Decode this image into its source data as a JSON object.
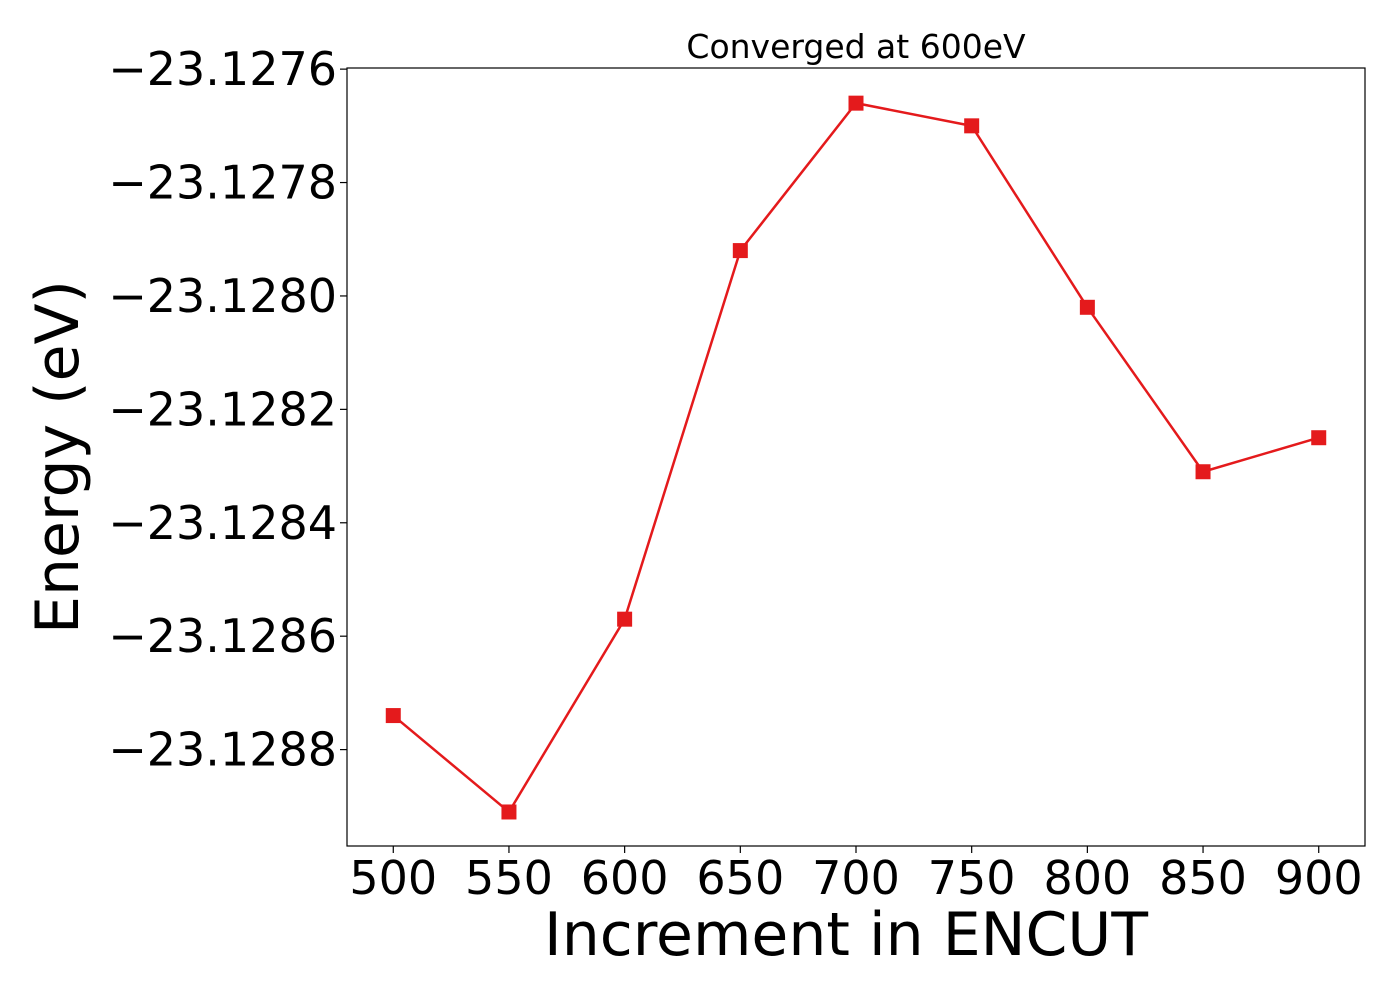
{
  "chart_data": {
    "type": "line",
    "title": "Converged at 600eV",
    "xlabel": "Increment in ENCUT",
    "ylabel": "Energy (eV)",
    "x": [
      500,
      550,
      600,
      650,
      700,
      750,
      800,
      850,
      900
    ],
    "series": [
      {
        "values": [
          -23.12874,
          -23.12891,
          -23.12857,
          -23.12792,
          -23.12766,
          -23.1277,
          -23.12802,
          -23.12831,
          -23.12825
        ],
        "color": "#e41a1c",
        "marker": "square"
      }
    ],
    "xticks": [
      500,
      550,
      600,
      650,
      700,
      750,
      800,
      850,
      900
    ],
    "xtick_labels": [
      "500",
      "550",
      "600",
      "650",
      "700",
      "750",
      "800",
      "850",
      "900"
    ],
    "yticks": [
      -23.1288,
      -23.1286,
      -23.1284,
      -23.1282,
      -23.128,
      -23.1278,
      -23.1276
    ],
    "ytick_labels": [
      "−23.1288",
      "−23.1286",
      "−23.1284",
      "−23.1282",
      "−23.1280",
      "−23.1278",
      "−23.1276"
    ],
    "xlim": [
      480,
      920
    ],
    "ylim": [
      -23.12897,
      -23.127598
    ],
    "grid": false,
    "legend": "none"
  }
}
